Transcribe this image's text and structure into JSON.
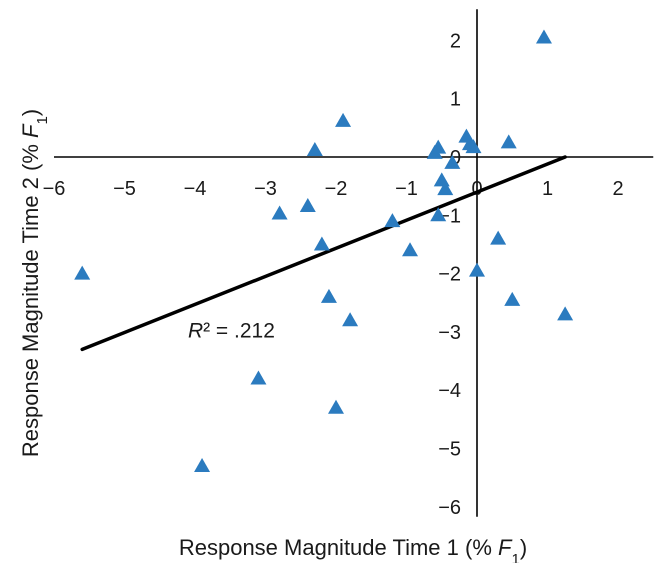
{
  "chart_data": {
    "type": "scatter",
    "xlabel": {
      "prefix": "Response Magnitude Time 1 (% ",
      "var": "F",
      "sub": "1",
      "suffix": ")"
    },
    "ylabel": {
      "prefix": "Response Magnitude Time 2 (% ",
      "var": "F",
      "sub": "1",
      "suffix": ")"
    },
    "xlim": [
      -6,
      2.5
    ],
    "ylim": [
      -6,
      2.5
    ],
    "xticks": [
      -6,
      -5,
      -4,
      -3,
      -2,
      -1,
      0,
      1,
      2
    ],
    "yticks": [
      -6,
      -5,
      -4,
      -3,
      -2,
      -1,
      0,
      1,
      2
    ],
    "tick_labels": {
      "-6": "−6",
      "-5": "−5",
      "-4": "−4",
      "-3": "−3",
      "-2": "−2",
      "-1": "−1",
      "0": "0",
      "1": "1",
      "2": "2"
    },
    "grid": false,
    "marker": "triangle",
    "marker_color": "#2b7bbf",
    "points": [
      {
        "x": -5.6,
        "y": -2.0
      },
      {
        "x": -3.9,
        "y": -5.3
      },
      {
        "x": -3.1,
        "y": -3.8
      },
      {
        "x": -2.8,
        "y": -0.97
      },
      {
        "x": -2.4,
        "y": -0.84
      },
      {
        "x": -2.3,
        "y": 0.12
      },
      {
        "x": -2.2,
        "y": -1.5
      },
      {
        "x": -2.1,
        "y": -2.4
      },
      {
        "x": -2.0,
        "y": -4.3
      },
      {
        "x": -1.9,
        "y": 0.62
      },
      {
        "x": -1.8,
        "y": -2.8
      },
      {
        "x": -1.2,
        "y": -1.1
      },
      {
        "x": -0.95,
        "y": -1.6
      },
      {
        "x": -0.6,
        "y": 0.07
      },
      {
        "x": -0.55,
        "y": 0.16
      },
      {
        "x": -0.55,
        "y": -1.0
      },
      {
        "x": -0.5,
        "y": -0.4
      },
      {
        "x": -0.45,
        "y": -0.55
      },
      {
        "x": -0.35,
        "y": -0.1
      },
      {
        "x": -0.15,
        "y": 0.35
      },
      {
        "x": -0.1,
        "y": 0.22
      },
      {
        "x": -0.05,
        "y": 0.17
      },
      {
        "x": 0.0,
        "y": -1.95
      },
      {
        "x": 0.3,
        "y": -1.4
      },
      {
        "x": 0.45,
        "y": 0.25
      },
      {
        "x": 0.5,
        "y": -2.45
      },
      {
        "x": 0.95,
        "y": 2.05
      },
      {
        "x": 1.25,
        "y": -2.7
      }
    ],
    "trendline": {
      "x1": -5.6,
      "y1": -3.3,
      "x2": 1.25,
      "y2": 0.0,
      "color": "#000000"
    },
    "annotation": {
      "var": "R",
      "text": "² = .212",
      "x": -4.1,
      "y": -3.1
    }
  }
}
